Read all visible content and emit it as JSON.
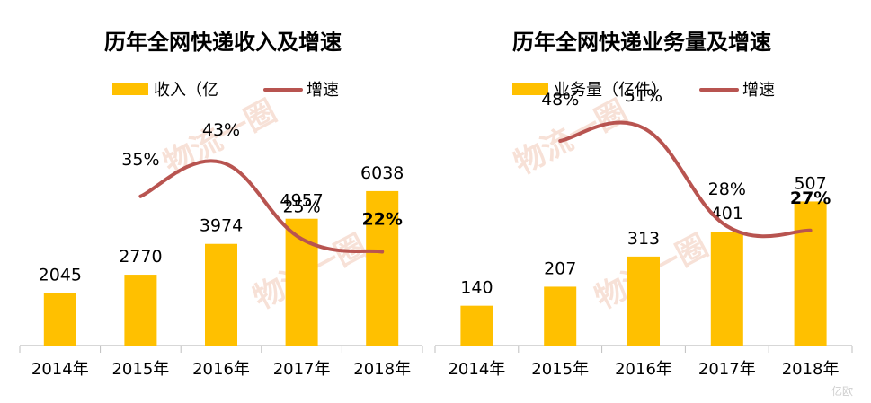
{
  "colors": {
    "bar": "#FFC000",
    "line": "#B85450",
    "axis": "#BFBFBF",
    "watermark": "#F2C9B8"
  },
  "watermark_text": "物流一圈",
  "corner_logo": "亿欧",
  "chart_data": [
    {
      "type": "bar",
      "title": "历年全网快递收入及增速",
      "categories": [
        "2014年",
        "2015年",
        "2016年",
        "2017年",
        "2018年"
      ],
      "legend": {
        "bar": "收入（亿",
        "line": "增速"
      },
      "series": [
        {
          "name": "收入（亿",
          "type": "bar",
          "values": [
            2045,
            2770,
            3974,
            4957,
            6038
          ],
          "labels": [
            "2045",
            "2770",
            "3974",
            "4957",
            "6038"
          ]
        },
        {
          "name": "增速",
          "type": "line",
          "values": [
            null,
            35,
            43,
            25,
            22
          ],
          "labels": [
            "",
            "35%",
            "43%",
            "25%",
            "22%"
          ]
        }
      ],
      "ylim": [
        0,
        10000
      ],
      "y2lim": [
        0,
        60
      ]
    },
    {
      "type": "bar",
      "title": "历年全网快递业务量及增速",
      "categories": [
        "2014年",
        "2015年",
        "2016年",
        "2017年",
        "2018年"
      ],
      "legend": {
        "bar": "业务量（亿件）",
        "line": "增速"
      },
      "series": [
        {
          "name": "业务量（亿件）",
          "type": "bar",
          "values": [
            140,
            207,
            313,
            401,
            507
          ],
          "labels": [
            "140",
            "207",
            "313",
            "401",
            "507"
          ]
        },
        {
          "name": "增速",
          "type": "line",
          "values": [
            null,
            48,
            51,
            28,
            27
          ],
          "labels": [
            "",
            "48%",
            "51%",
            "28%",
            "27%"
          ]
        }
      ],
      "ylim": [
        0,
        900
      ],
      "y2lim": [
        0,
        60
      ]
    }
  ]
}
